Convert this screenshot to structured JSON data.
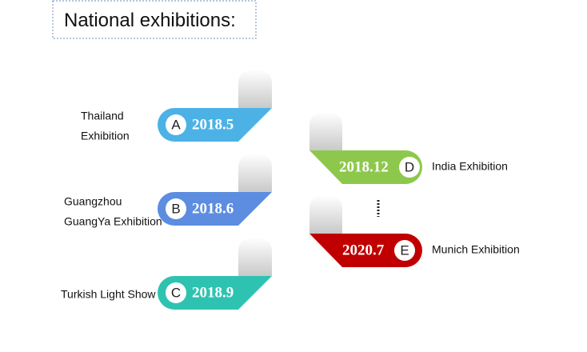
{
  "title": "National exhibitions:",
  "items": [
    {
      "letter": "A",
      "date": "2018.5",
      "label": [
        "Thailand",
        "Exhibition"
      ],
      "color": "#4cb2e6"
    },
    {
      "letter": "B",
      "date": "2018.6",
      "label": [
        "Guangzhou",
        "GuangYa Exhibition"
      ],
      "color": "#5c8de0"
    },
    {
      "letter": "C",
      "date": "2018.9",
      "label": [
        "Turkish Light Show"
      ],
      "color": "#2ec3b1"
    },
    {
      "letter": "D",
      "date": "2018.12",
      "label": [
        "India Exhibition"
      ],
      "color": "#8dc84c"
    },
    {
      "letter": "E",
      "date": "2020.7",
      "label": [
        "Munich Exhibition"
      ],
      "color": "#c00000"
    }
  ]
}
